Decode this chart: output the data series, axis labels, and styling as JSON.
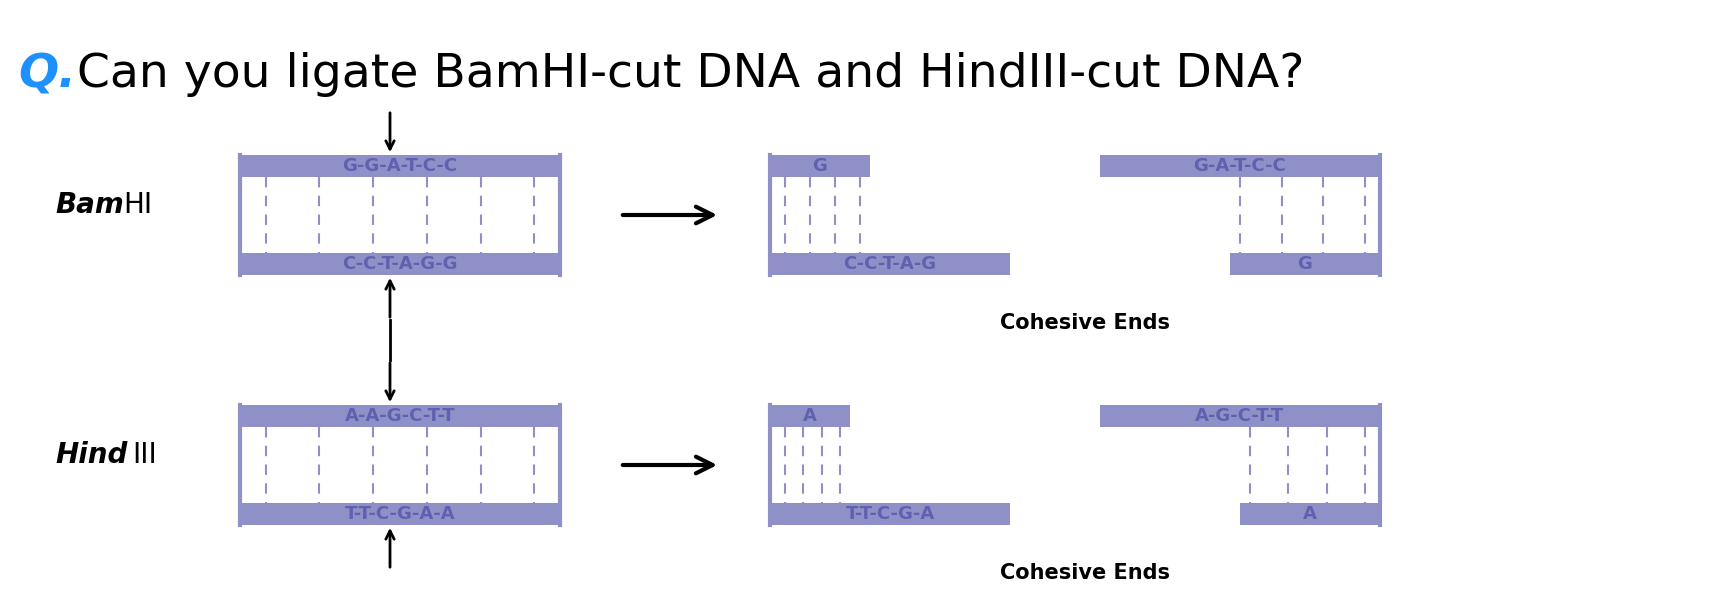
{
  "title_q": "Q.",
  "title_text": " Can you ligate BamHI-cut DNA and HindIII-cut DNA?",
  "title_q_color": "#1E90FF",
  "title_text_color": "#000000",
  "dna_color": "#9090C8",
  "text_seq_color": "#6060B0",
  "background": "#FFFFFF",
  "bamhi_label_italic": "Bam",
  "bamhi_label_normal": "HI",
  "hindiii_label_italic": "Hind",
  "hindiii_label_normal": "III",
  "bamhi_top_seq": "G-G-A-T-C-C",
  "bamhi_bot_seq": "C-C-T-A-G-G",
  "hindiii_top_seq": "A-A-G-C-T-T",
  "hindiii_bot_seq": "T-T-C-G-A-A",
  "cohesive_ends": "Cohesive Ends",
  "fig_w": 17.23,
  "fig_h": 6.01,
  "dpi": 100
}
